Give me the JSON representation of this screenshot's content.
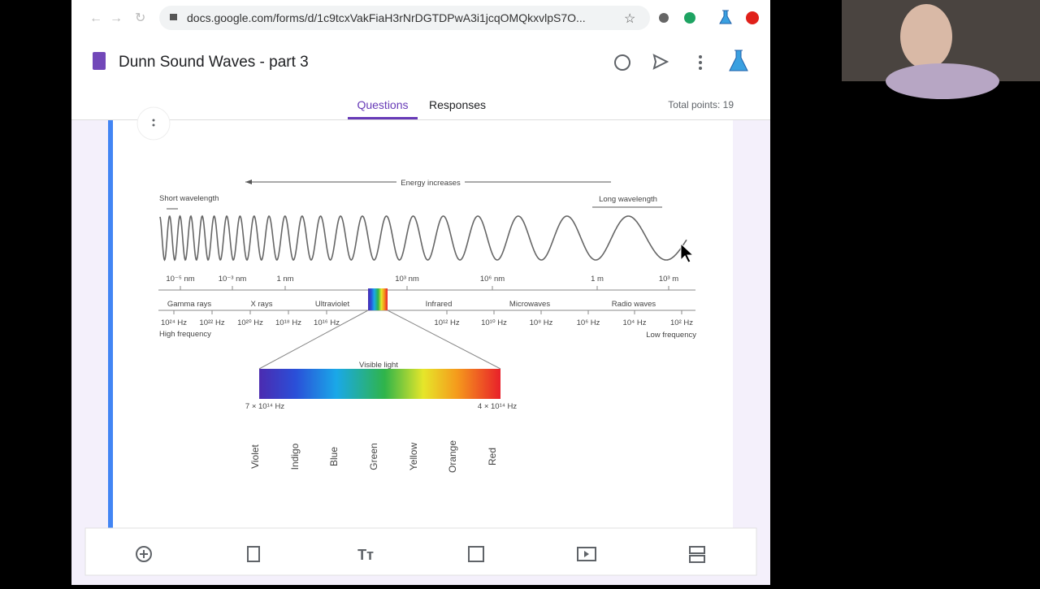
{
  "browser": {
    "url": "docs.google.com/forms/d/1c9tcxVakFiaH3rNrDGTDPwA3i1jcqOMQkxvlpS7O..."
  },
  "form": {
    "title": "Dunn Sound Waves - part 3",
    "tabs": [
      "Questions",
      "Responses"
    ],
    "total_points": "Total points: 19"
  },
  "figure": {
    "energy": "Energy increases",
    "short_wavelength": "Short wavelength",
    "long_wavelength": "Long wavelength",
    "wavelengths": [
      "10⁻⁵ nm",
      "10⁻³ nm",
      "1 nm",
      "10³ nm",
      "10⁶ nm",
      "1 m",
      "10³ m"
    ],
    "bands": [
      "Gamma rays",
      "X rays",
      "Ultraviolet",
      "Infrared",
      "Microwaves",
      "Radio waves"
    ],
    "frequencies": [
      "10²⁴ Hz",
      "10²² Hz",
      "10²⁰ Hz",
      "10¹⁸ Hz",
      "10¹⁶ Hz",
      "10¹² Hz",
      "10¹⁰ Hz",
      "10⁸ Hz",
      "10⁶ Hz",
      "10⁴ Hz",
      "10² Hz"
    ],
    "high_frequency": "High frequency",
    "low_frequency": "Low frequency",
    "visible_light": "Visible light",
    "visible_high": "7 × 10¹⁴ Hz",
    "visible_low": "4 × 10¹⁴ Hz",
    "colors": [
      "Violet",
      "Indigo",
      "Blue",
      "Green",
      "Yellow",
      "Orange",
      "Red"
    ]
  }
}
